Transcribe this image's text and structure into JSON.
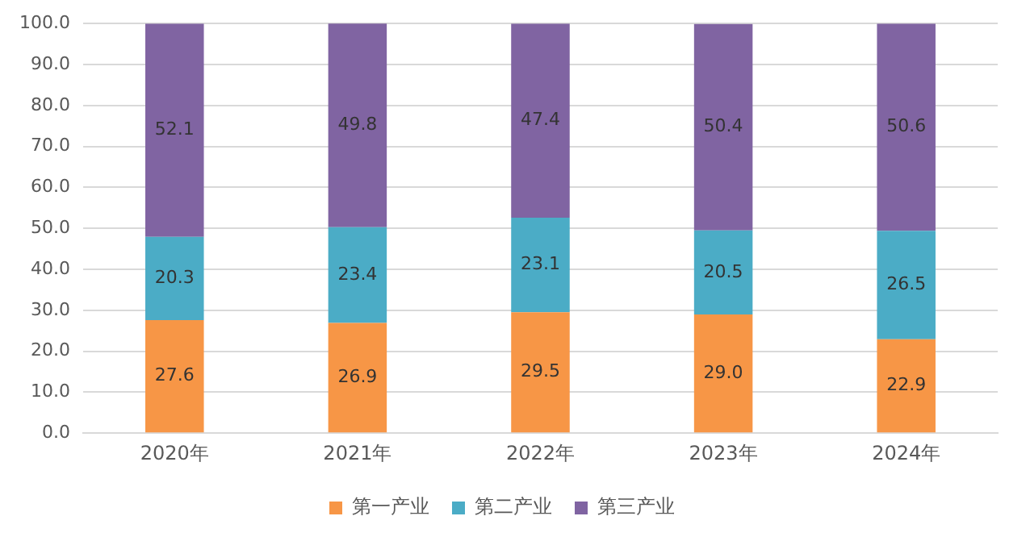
{
  "chart_data": {
    "type": "bar",
    "stacked": true,
    "categories": [
      "2020年",
      "2021年",
      "2022年",
      "2023年",
      "2024年"
    ],
    "series": [
      {
        "name": "第一产业",
        "color": "#f79646",
        "values": [
          27.6,
          26.9,
          29.5,
          29.0,
          22.9
        ]
      },
      {
        "name": "第二产业",
        "color": "#4bacc6",
        "values": [
          20.3,
          23.4,
          23.1,
          20.5,
          26.5
        ]
      },
      {
        "name": "第三产业",
        "color": "#8064a2",
        "values": [
          52.1,
          49.8,
          47.4,
          50.4,
          50.6
        ]
      }
    ],
    "value_labels": [
      [
        "27.6",
        "26.9",
        "29.5",
        "29.0",
        "22.9"
      ],
      [
        "20.3",
        "23.4",
        "23.1",
        "20.5",
        "26.5"
      ],
      [
        "52.1",
        "49.8",
        "47.4",
        "50.4",
        "50.6"
      ]
    ],
    "ylim": [
      0,
      100
    ],
    "yticks": [
      {
        "value": 0,
        "label": "0.0"
      },
      {
        "value": 10,
        "label": "10.0"
      },
      {
        "value": 20,
        "label": "20.0"
      },
      {
        "value": 30,
        "label": "30.0"
      },
      {
        "value": 40,
        "label": "40.0"
      },
      {
        "value": 50,
        "label": "50.0"
      },
      {
        "value": 60,
        "label": "60.0"
      },
      {
        "value": 70,
        "label": "70.0"
      },
      {
        "value": 80,
        "label": "80.0"
      },
      {
        "value": 90,
        "label": "90.0"
      },
      {
        "value": 100,
        "label": "100.0"
      }
    ],
    "grid": "y",
    "legend": "bottom"
  }
}
